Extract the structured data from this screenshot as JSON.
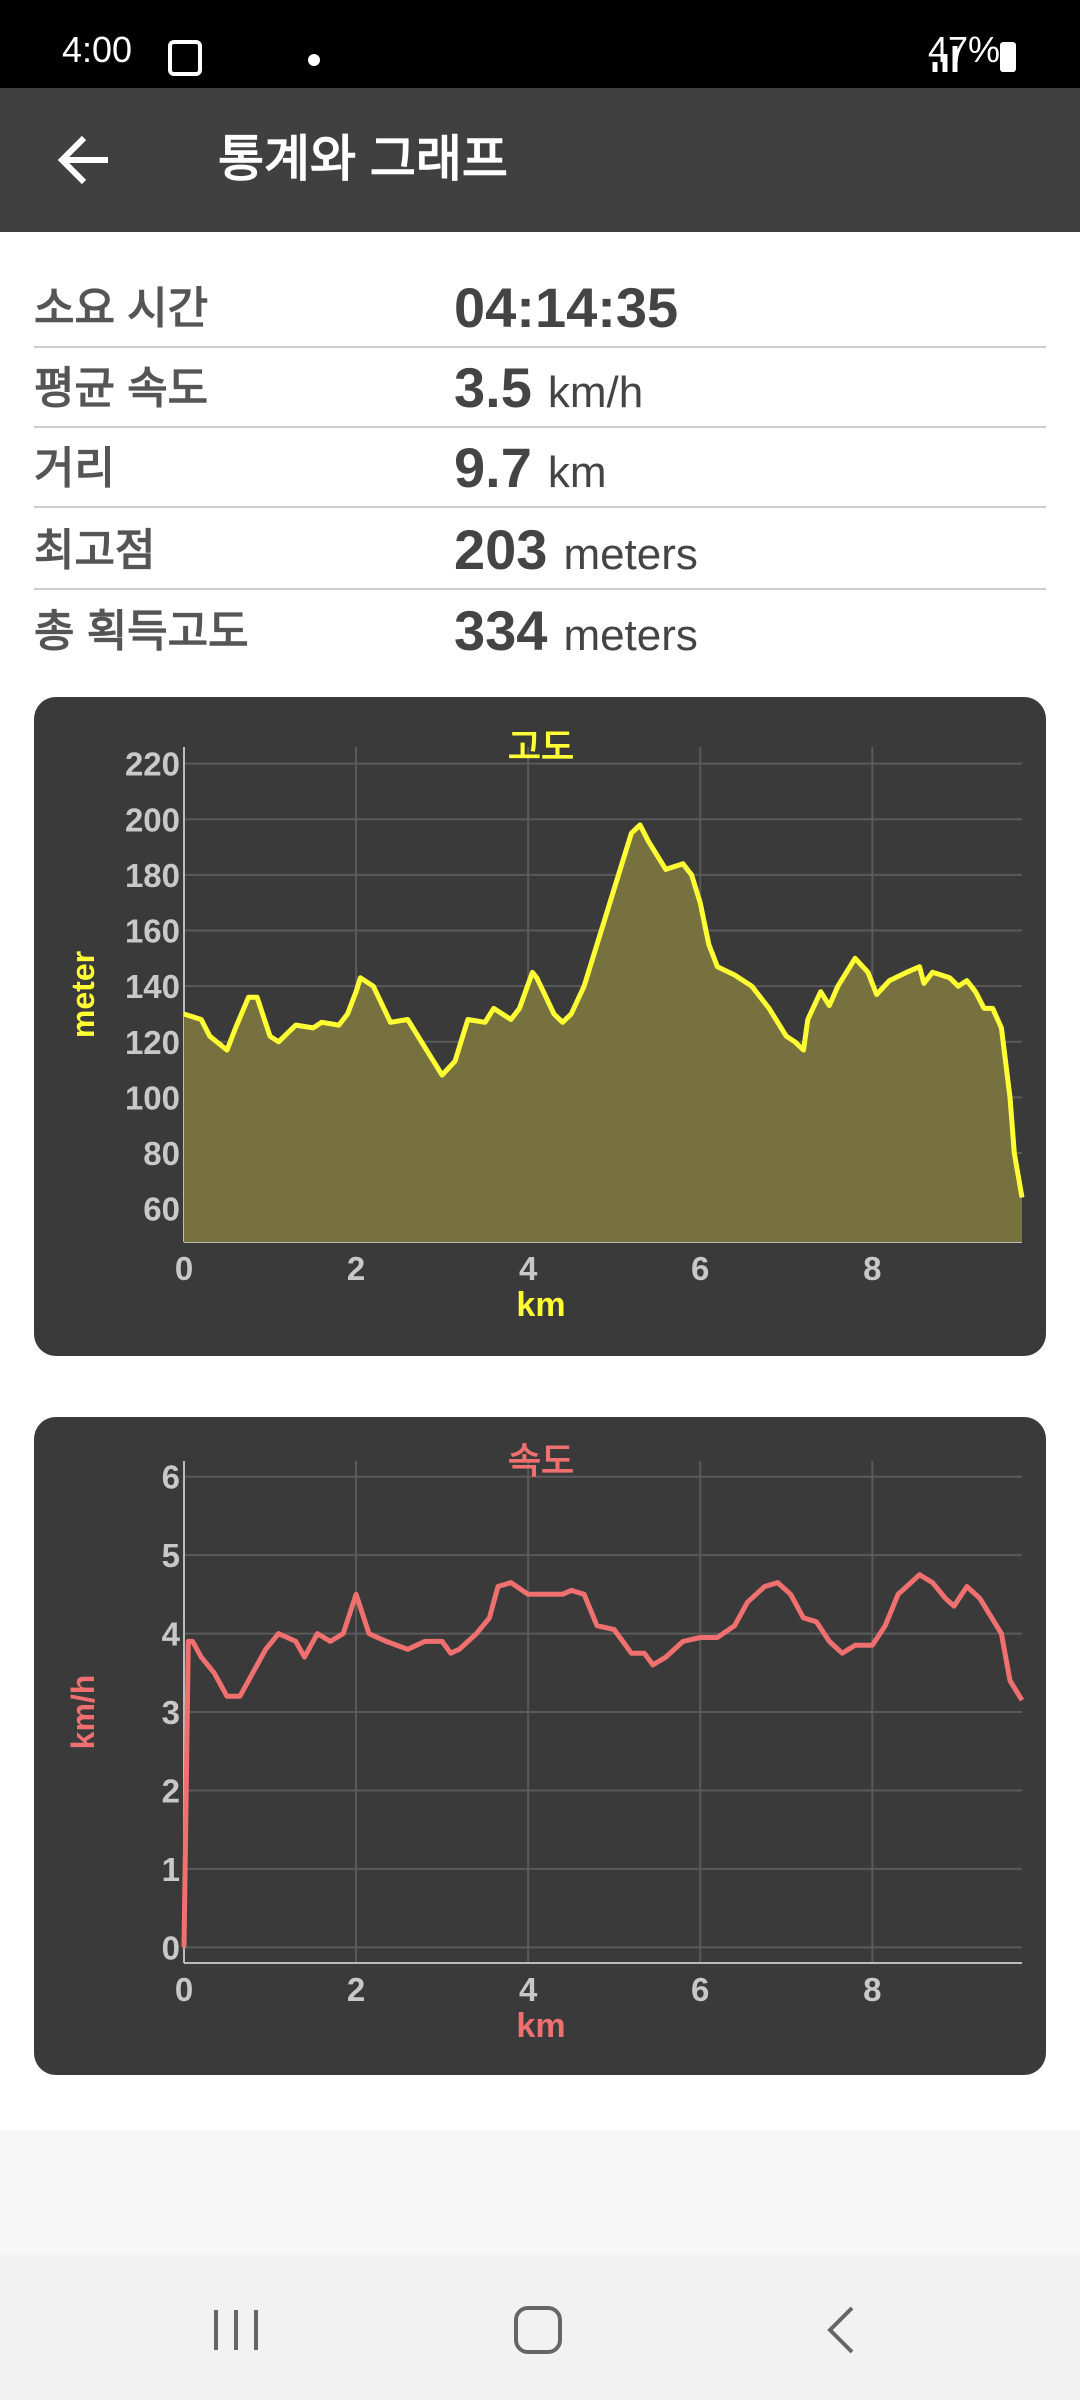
{
  "status": {
    "time": "4:00",
    "battery": "47%"
  },
  "header": {
    "title": "통계와 그래프"
  },
  "stats": [
    {
      "label": "소요 시간",
      "value": "04:14:35"
    },
    {
      "label": "평균 속도",
      "value": 3.5,
      "unit": "km/h"
    },
    {
      "label": "거리",
      "value": 9.7,
      "unit": "km"
    },
    {
      "label": "최고점",
      "value": 203,
      "unit": "meters"
    },
    {
      "label": "총 획득고도",
      "value": 334,
      "unit": "meters"
    }
  ],
  "charts": [
    {
      "type": "area",
      "title": "고도",
      "xlabel": "km",
      "ylabel": "meter",
      "color": "#ffff33",
      "fill": "#77703f",
      "xlim": [
        0,
        9.74
      ],
      "ylim": [
        48,
        226
      ],
      "xticks": [
        0,
        2,
        4,
        6,
        8
      ],
      "yticks": [
        60,
        80,
        100,
        120,
        140,
        160,
        180,
        200,
        220
      ],
      "grid": true,
      "x": [
        0,
        0.2,
        0.3,
        0.5,
        0.6,
        0.75,
        0.85,
        1.0,
        1.1,
        1.3,
        1.5,
        1.6,
        1.8,
        1.9,
        2.0,
        2.05,
        2.2,
        2.4,
        2.6,
        2.8,
        3.0,
        3.15,
        3.3,
        3.5,
        3.6,
        3.8,
        3.9,
        4.05,
        4.1,
        4.3,
        4.4,
        4.5,
        4.65,
        4.9,
        5.05,
        5.2,
        5.3,
        5.4,
        5.6,
        5.8,
        5.9,
        6.0,
        6.1,
        6.2,
        6.4,
        6.6,
        6.8,
        7.0,
        7.1,
        7.2,
        7.25,
        7.4,
        7.5,
        7.6,
        7.8,
        7.95,
        8.05,
        8.2,
        8.4,
        8.55,
        8.6,
        8.7,
        8.9,
        9.0,
        9.1,
        9.2,
        9.3,
        9.4,
        9.5,
        9.6,
        9.65,
        9.74
      ],
      "values": [
        130,
        128,
        122,
        117,
        125,
        136,
        136,
        122,
        120,
        126,
        125,
        127,
        126,
        130,
        138,
        143,
        140,
        127,
        128,
        118,
        108,
        113,
        128,
        127,
        132,
        128,
        132,
        145,
        143,
        130,
        127,
        130,
        140,
        165,
        180,
        195,
        198,
        192,
        182,
        184,
        180,
        170,
        155,
        147,
        144,
        140,
        132,
        122,
        120,
        117,
        128,
        138,
        133,
        140,
        150,
        145,
        137,
        142,
        145,
        147,
        141,
        145,
        143,
        140,
        142,
        138,
        132,
        132,
        125,
        100,
        80,
        64
      ]
    },
    {
      "type": "line",
      "title": "속도",
      "xlabel": "km",
      "ylabel": "km/h",
      "color": "#f07070",
      "xlim": [
        0,
        9.74
      ],
      "ylim": [
        -0.2,
        6.2
      ],
      "xticks": [
        0,
        2,
        4,
        6,
        8
      ],
      "yticks": [
        0,
        1,
        2,
        3,
        4,
        5,
        6
      ],
      "grid": true,
      "x": [
        0,
        0.05,
        0.1,
        0.2,
        0.35,
        0.5,
        0.65,
        0.8,
        0.95,
        1.1,
        1.3,
        1.4,
        1.55,
        1.7,
        1.85,
        2.0,
        2.15,
        2.35,
        2.6,
        2.8,
        3.0,
        3.1,
        3.2,
        3.4,
        3.55,
        3.65,
        3.8,
        4.0,
        4.2,
        4.4,
        4.5,
        4.65,
        4.8,
        5.0,
        5.2,
        5.35,
        5.45,
        5.6,
        5.8,
        6.0,
        6.2,
        6.4,
        6.55,
        6.75,
        6.9,
        7.05,
        7.2,
        7.35,
        7.5,
        7.65,
        7.8,
        8.0,
        8.15,
        8.3,
        8.45,
        8.55,
        8.7,
        8.85,
        8.95,
        9.1,
        9.25,
        9.5,
        9.6,
        9.74
      ],
      "values": [
        0,
        3.9,
        3.9,
        3.7,
        3.5,
        3.2,
        3.2,
        3.5,
        3.8,
        4.0,
        3.9,
        3.7,
        4.0,
        3.9,
        4.0,
        4.5,
        4.0,
        3.9,
        3.8,
        3.9,
        3.9,
        3.75,
        3.8,
        4.0,
        4.2,
        4.6,
        4.65,
        4.5,
        4.5,
        4.5,
        4.55,
        4.5,
        4.1,
        4.05,
        3.75,
        3.75,
        3.6,
        3.7,
        3.9,
        3.95,
        3.95,
        4.1,
        4.4,
        4.6,
        4.65,
        4.5,
        4.2,
        4.15,
        3.9,
        3.75,
        3.85,
        3.85,
        4.1,
        4.5,
        4.65,
        4.75,
        4.65,
        4.45,
        4.35,
        4.6,
        4.45,
        4.0,
        3.4,
        3.15
      ]
    }
  ]
}
